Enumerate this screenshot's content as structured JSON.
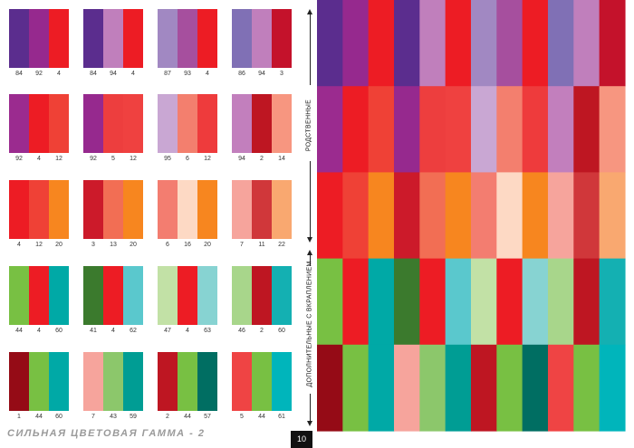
{
  "small_cards": [
    {
      "colors": [
        "#5b2d8e",
        "#96298e",
        "#ed1c24"
      ],
      "codes": [
        "84",
        "92",
        "4"
      ]
    },
    {
      "colors": [
        "#5b2d8e",
        "#c07fbc",
        "#ed1c24"
      ],
      "codes": [
        "84",
        "94",
        "4"
      ]
    },
    {
      "colors": [
        "#a188c2",
        "#a64f9e",
        "#ed1c24"
      ],
      "codes": [
        "87",
        "93",
        "4"
      ]
    },
    {
      "colors": [
        "#8070b5",
        "#c07fbc",
        "#c4122b"
      ],
      "codes": [
        "86",
        "94",
        "3"
      ]
    },
    {
      "colors": [
        "#9b2b8f",
        "#ed1c24",
        "#ef4136"
      ],
      "codes": [
        "92",
        "4",
        "12"
      ]
    },
    {
      "colors": [
        "#96298e",
        "#ed3e3e",
        "#ef4140"
      ],
      "codes": [
        "92",
        "5",
        "12"
      ]
    },
    {
      "colors": [
        "#c9a7d3",
        "#f37f6e",
        "#ee3b3c"
      ],
      "codes": [
        "95",
        "6",
        "12"
      ]
    },
    {
      "colors": [
        "#c27fbd",
        "#be1622",
        "#f79680"
      ],
      "codes": [
        "94",
        "2",
        "14"
      ]
    },
    {
      "colors": [
        "#ed1c24",
        "#ef4136",
        "#f7861f"
      ],
      "codes": [
        "4",
        "12",
        "20"
      ]
    },
    {
      "colors": [
        "#cc1a2a",
        "#f26e54",
        "#f7861f"
      ],
      "codes": [
        "3",
        "13",
        "20"
      ]
    },
    {
      "colors": [
        "#f37d70",
        "#fdd9c4",
        "#f7861f"
      ],
      "codes": [
        "6",
        "16",
        "20"
      ]
    },
    {
      "colors": [
        "#f6a49c",
        "#d0373a",
        "#f9a870"
      ],
      "codes": [
        "7",
        "11",
        "22"
      ]
    },
    {
      "colors": [
        "#78c043",
        "#ed1c24",
        "#00a9a6"
      ],
      "codes": [
        "44",
        "4",
        "60"
      ]
    },
    {
      "colors": [
        "#3b7a2d",
        "#ed1c24",
        "#5ac8cd"
      ],
      "codes": [
        "41",
        "4",
        "62"
      ]
    },
    {
      "colors": [
        "#c2e1a6",
        "#ed1c24",
        "#87d3d2"
      ],
      "codes": [
        "47",
        "4",
        "63"
      ]
    },
    {
      "colors": [
        "#a8d68b",
        "#be1622",
        "#14b0b2"
      ],
      "codes": [
        "46",
        "2",
        "60"
      ]
    },
    {
      "colors": [
        "#950b16",
        "#78c043",
        "#00a9a6"
      ],
      "codes": [
        "1",
        "44",
        "60"
      ]
    },
    {
      "colors": [
        "#f6a49c",
        "#8cc76b",
        "#009d94"
      ],
      "codes": [
        "7",
        "43",
        "59"
      ]
    },
    {
      "colors": [
        "#be1622",
        "#78c043",
        "#006e62"
      ],
      "codes": [
        "2",
        "44",
        "57"
      ]
    },
    {
      "colors": [
        "#ef4444",
        "#78c043",
        "#00b5bb"
      ],
      "codes": [
        "5",
        "44",
        "61"
      ]
    }
  ],
  "big_grid": [
    [
      "#5b2d8e",
      "#96298e",
      "#ed1c24",
      "#5b2d8e",
      "#c07fbc",
      "#ed1c24",
      "#a188c2",
      "#a64f9e",
      "#ed1c24",
      "#8070b5",
      "#c07fbc",
      "#c4122b"
    ],
    [
      "#9b2b8f",
      "#ed1c24",
      "#ef4136",
      "#96298e",
      "#ed3e3e",
      "#ef4140",
      "#c9a7d3",
      "#f37f6e",
      "#ee3b3c",
      "#c27fbd",
      "#be1622",
      "#f79680"
    ],
    [
      "#ed1c24",
      "#ef4136",
      "#f7861f",
      "#cc1a2a",
      "#f26e54",
      "#f7861f",
      "#f37d70",
      "#fdd9c4",
      "#f7861f",
      "#f6a49c",
      "#d0373a",
      "#f9a870"
    ],
    [
      "#78c043",
      "#ed1c24",
      "#00a9a6",
      "#3b7a2d",
      "#ed1c24",
      "#5ac8cd",
      "#c2e1a6",
      "#ed1c24",
      "#87d3d2",
      "#a8d68b",
      "#be1622",
      "#14b0b2"
    ],
    [
      "#950b16",
      "#78c043",
      "#00a9a6",
      "#f6a49c",
      "#8cc76b",
      "#009d94",
      "#be1622",
      "#78c043",
      "#006e62",
      "#ef4444",
      "#78c043",
      "#00b5bb"
    ]
  ],
  "labels": {
    "related": "РОДСТВЕННЫЕ",
    "complementary": "ДОПОЛНИТЕЛЬНЫЕ С ВКРАПЛЕНИЕМ",
    "footer_title": "СИЛЬНАЯ ЦВЕТОВАЯ ГАММА - 2",
    "page_number": "10"
  }
}
